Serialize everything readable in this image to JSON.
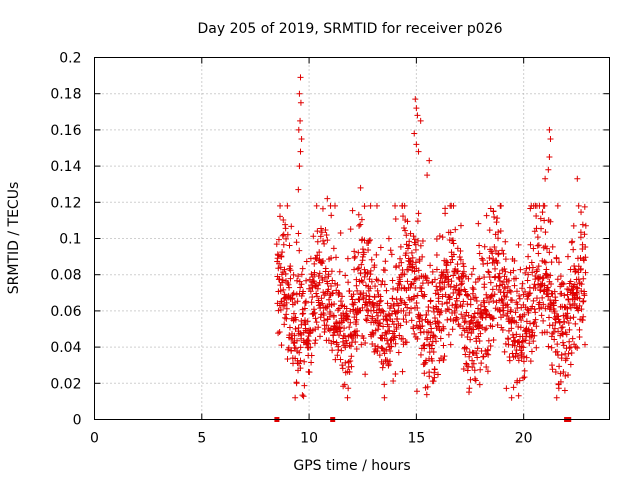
{
  "chart_data": {
    "type": "scatter",
    "title": "Day 205 of 2019, SRMTID for receiver p026",
    "xlabel": "GPS time / hours",
    "ylabel": "SRMTID / TECUs",
    "xlim": [
      0,
      24
    ],
    "ylim": [
      0,
      0.2
    ],
    "x_ticks": [
      0,
      5,
      10,
      15,
      20
    ],
    "x_tick_labels": [
      "0",
      "5",
      "10",
      "15",
      "20"
    ],
    "y_ticks": [
      0,
      0.02,
      0.04,
      0.06,
      0.08,
      0.1,
      0.12,
      0.14,
      0.16,
      0.18,
      0.2
    ],
    "y_tick_labels": [
      "0",
      "0.02",
      "0.04",
      "0.06",
      "0.08",
      "0.1",
      "0.12",
      "0.14",
      "0.16",
      "0.18",
      "0.2"
    ],
    "grid": true,
    "marker": "+",
    "color": "#e00000",
    "x_range_data": [
      8.5,
      22.9
    ],
    "zero_markers_x": [
      8.5,
      11.1,
      22.0,
      22.1
    ],
    "peak_points": [
      {
        "x": 9.6,
        "y": 0.189
      },
      {
        "x": 9.55,
        "y": 0.18
      },
      {
        "x": 9.62,
        "y": 0.175
      },
      {
        "x": 9.58,
        "y": 0.165
      },
      {
        "x": 9.52,
        "y": 0.16
      },
      {
        "x": 9.65,
        "y": 0.155
      },
      {
        "x": 9.6,
        "y": 0.148
      },
      {
        "x": 9.55,
        "y": 0.14
      },
      {
        "x": 9.5,
        "y": 0.127
      },
      {
        "x": 14.95,
        "y": 0.177
      },
      {
        "x": 15.0,
        "y": 0.172
      },
      {
        "x": 15.05,
        "y": 0.168
      },
      {
        "x": 15.2,
        "y": 0.165
      },
      {
        "x": 14.9,
        "y": 0.158
      },
      {
        "x": 15.0,
        "y": 0.152
      },
      {
        "x": 15.1,
        "y": 0.148
      },
      {
        "x": 15.6,
        "y": 0.143
      },
      {
        "x": 15.5,
        "y": 0.135
      },
      {
        "x": 21.2,
        "y": 0.16
      },
      {
        "x": 21.25,
        "y": 0.155
      },
      {
        "x": 21.2,
        "y": 0.145
      },
      {
        "x": 21.15,
        "y": 0.138
      },
      {
        "x": 22.5,
        "y": 0.133
      },
      {
        "x": 21.0,
        "y": 0.133
      },
      {
        "x": 12.4,
        "y": 0.128
      },
      {
        "x": 10.85,
        "y": 0.122
      },
      {
        "x": 11.0,
        "y": 0.118
      }
    ]
  }
}
